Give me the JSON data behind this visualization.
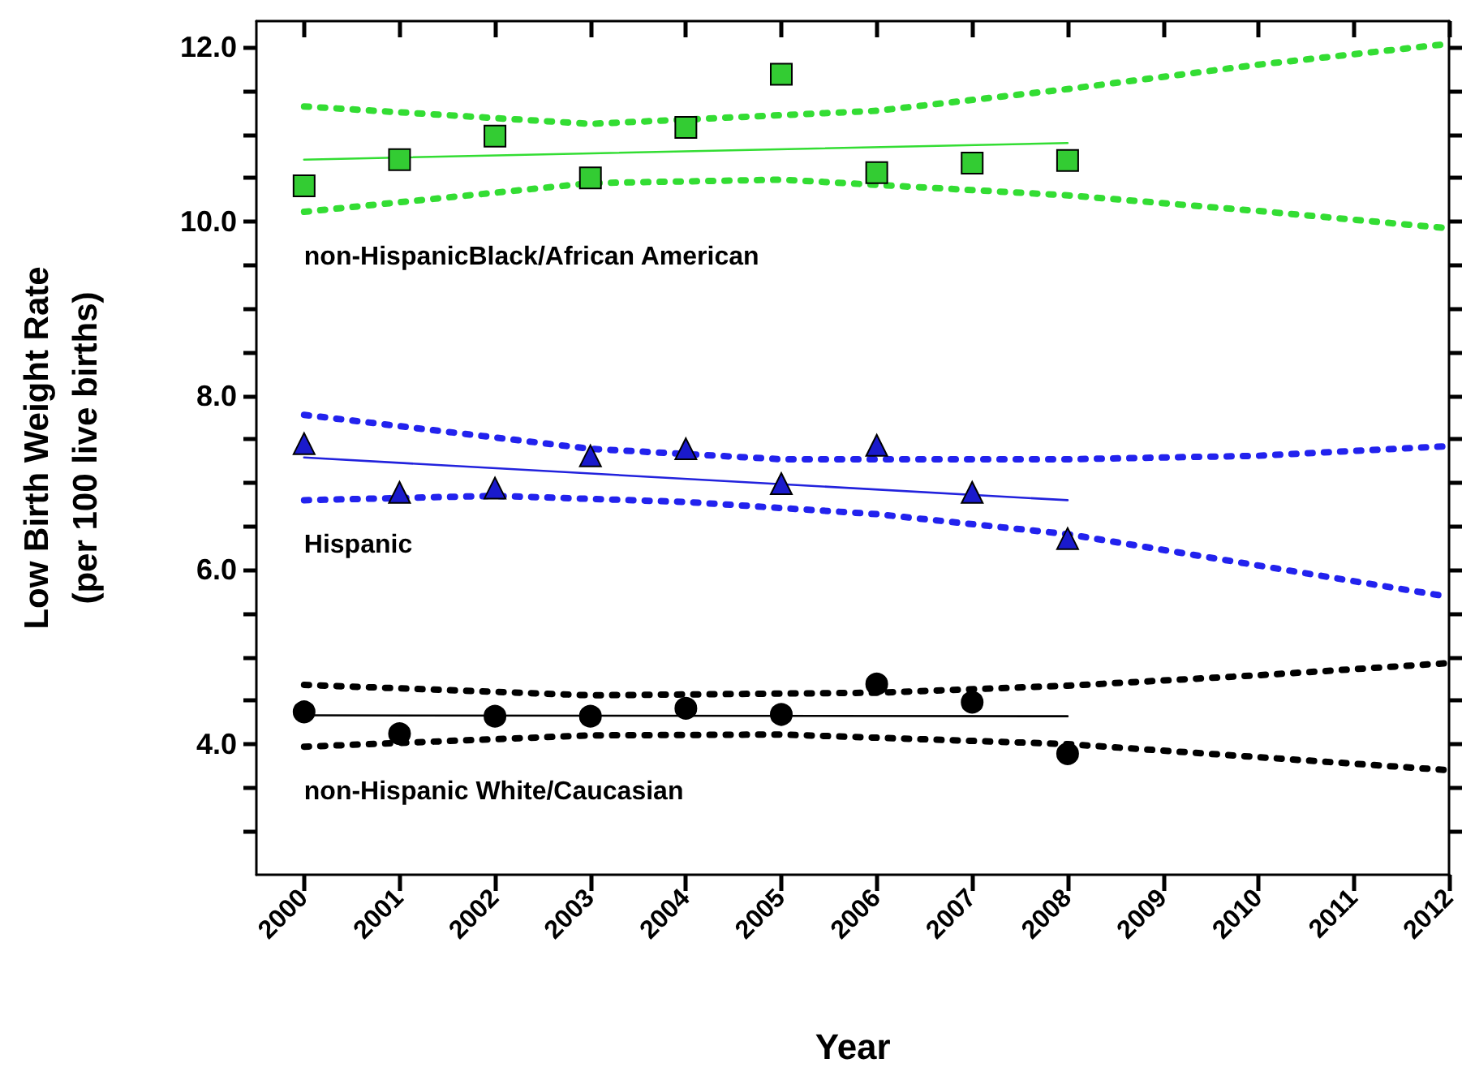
{
  "chart_data": {
    "type": "scatter",
    "xlabel": "Year",
    "ylabel": "Low Birth Weight Rate\n(per 100 live births)",
    "xlim": [
      1999.5,
      2012
    ],
    "ylim": [
      2.5,
      12.3
    ],
    "xticks": [
      2000,
      2001,
      2002,
      2003,
      2004,
      2005,
      2006,
      2007,
      2008,
      2009,
      2010,
      2011,
      2012
    ],
    "yticks": [
      {
        "value": 3,
        "label": null
      },
      {
        "value": 3.5,
        "label": null
      },
      {
        "value": 4,
        "label": "4.0"
      },
      {
        "value": 4.5,
        "label": null
      },
      {
        "value": 5,
        "label": null
      },
      {
        "value": 5.5,
        "label": null
      },
      {
        "value": 6,
        "label": "6.0"
      },
      {
        "value": 6.5,
        "label": null
      },
      {
        "value": 7,
        "label": null
      },
      {
        "value": 7.5,
        "label": null
      },
      {
        "value": 8,
        "label": "8.0"
      },
      {
        "value": 8.5,
        "label": null
      },
      {
        "value": 9,
        "label": null
      },
      {
        "value": 9.5,
        "label": null
      },
      {
        "value": 10,
        "label": "10.0"
      },
      {
        "value": 10.5,
        "label": null
      },
      {
        "value": 11,
        "label": null
      },
      {
        "value": 11.5,
        "label": null
      },
      {
        "value": 12,
        "label": "12.0"
      }
    ],
    "grid": false,
    "legend": false,
    "series": [
      {
        "type": "scatter",
        "name": "non-HispanicBlack/African American",
        "color": "#33cc33",
        "marker": "square",
        "x": [
          2000,
          2001,
          2002,
          2003,
          2004,
          2005,
          2006,
          2007,
          2008
        ],
        "values": [
          10.41,
          10.71,
          10.98,
          10.5,
          11.08,
          11.69,
          10.56,
          10.67,
          10.7
        ]
      },
      {
        "type": "line",
        "color": "#33dd33",
        "marker": "none",
        "line_style": "solid",
        "x": [
          2000,
          2008
        ],
        "values": [
          10.71,
          10.9
        ]
      },
      {
        "type": "line",
        "color": "#33dd33",
        "marker": "none",
        "line_style": "dotted",
        "x": [
          2000,
          2003,
          2006,
          2008,
          2010,
          2012
        ],
        "values": [
          11.32,
          11.12,
          11.27,
          11.52,
          11.8,
          12.04
        ]
      },
      {
        "type": "line",
        "color": "#33dd33",
        "marker": "none",
        "line_style": "dotted",
        "x": [
          2000,
          2003,
          2005,
          2008,
          2010,
          2012
        ],
        "values": [
          10.11,
          10.44,
          10.48,
          10.3,
          10.12,
          9.92
        ]
      },
      {
        "type": "scatter",
        "name": "Hispanic",
        "color": "#1a1acc",
        "marker": "triangle",
        "x": [
          2000,
          2001,
          2002,
          2003,
          2004,
          2005,
          2006,
          2007,
          2008
        ],
        "values": [
          7.45,
          6.89,
          6.94,
          7.31,
          7.39,
          6.99,
          7.43,
          6.89,
          6.36
        ]
      },
      {
        "type": "line",
        "color": "#2222dd",
        "marker": "none",
        "line_style": "solid",
        "x": [
          2000,
          2008
        ],
        "values": [
          7.29,
          6.8
        ]
      },
      {
        "type": "line",
        "color": "#2222ee",
        "marker": "none",
        "line_style": "dotted",
        "x": [
          2000,
          2003,
          2005,
          2008,
          2010,
          2012
        ],
        "values": [
          7.78,
          7.39,
          7.27,
          7.27,
          7.31,
          7.42
        ]
      },
      {
        "type": "line",
        "color": "#2222ee",
        "marker": "none",
        "line_style": "dotted",
        "x": [
          2000,
          2002,
          2004,
          2006,
          2008,
          2010,
          2012
        ],
        "values": [
          6.8,
          6.85,
          6.78,
          6.64,
          6.41,
          6.05,
          5.69
        ]
      },
      {
        "type": "scatter",
        "name": "non-Hispanic White/Caucasian",
        "color": "#000000",
        "marker": "circle",
        "x": [
          2000,
          2001,
          2002,
          2003,
          2004,
          2005,
          2006,
          2007,
          2008
        ],
        "values": [
          4.37,
          4.12,
          4.32,
          4.32,
          4.41,
          4.34,
          4.69,
          4.48,
          3.89
        ]
      },
      {
        "type": "line",
        "color": "#000000",
        "marker": "none",
        "line_style": "solid",
        "x": [
          2000,
          2008
        ],
        "values": [
          4.33,
          4.32
        ]
      },
      {
        "type": "line",
        "color": "#000000",
        "marker": "none",
        "line_style": "dotted",
        "x": [
          2000,
          2003,
          2006,
          2008,
          2010,
          2012
        ],
        "values": [
          4.68,
          4.56,
          4.59,
          4.67,
          4.79,
          4.93
        ]
      },
      {
        "type": "line",
        "color": "#000000",
        "marker": "none",
        "line_style": "dotted",
        "x": [
          2000,
          2003,
          2005,
          2008,
          2010,
          2012
        ],
        "values": [
          3.97,
          4.1,
          4.11,
          4.0,
          3.85,
          3.7
        ]
      }
    ]
  }
}
